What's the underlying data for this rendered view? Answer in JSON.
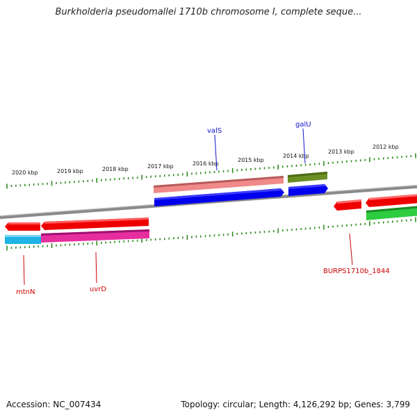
{
  "title": "Burkholderia pseudomallei 1710b chromosome I, complete seque...",
  "footer": {
    "accession": "Accession: NC_007434",
    "summary": "Topology: circular; Length: 4,126,292 bp; Genes: 3,799"
  },
  "colors": {
    "backbone": "#8a8a8a",
    "tick": "#2f8a20",
    "forward_label": "#1010cc",
    "reverse_label": "#cc0000"
  },
  "scale_labels": [
    "2020 kbp",
    "2019 kbp",
    "2018 kbp",
    "2017 kbp",
    "2016 kbp",
    "2015 kbp",
    "2014 kbp",
    "2013 kbp",
    "2012 kbp"
  ],
  "genes": [
    {
      "id": "valS",
      "label": "valS",
      "color": "#0000ee",
      "strand": "forward"
    },
    {
      "id": "galU",
      "label": "galU",
      "color": "#0000ee",
      "strand": "forward"
    },
    {
      "id": "mtnN",
      "label": "mtnN",
      "color": "#ee0000",
      "strand": "reverse"
    },
    {
      "id": "uvrD",
      "label": "uvrD",
      "color": "#ee0000",
      "strand": "reverse"
    },
    {
      "id": "burps1844",
      "label": "BURPS1710b_1844",
      "color": "#ee0000",
      "strand": "reverse"
    }
  ],
  "features": [
    {
      "id": "valS-rna",
      "color": "#f08a8a"
    },
    {
      "id": "galU-rna",
      "color": "#6b8e23"
    },
    {
      "id": "mtnN-rna",
      "color": "#1eb4e6"
    },
    {
      "id": "uvrD-rna",
      "color": "#e62e9e"
    },
    {
      "id": "right-green",
      "color": "#2ecc40"
    },
    {
      "id": "right-red",
      "color": "#ee0000"
    }
  ]
}
